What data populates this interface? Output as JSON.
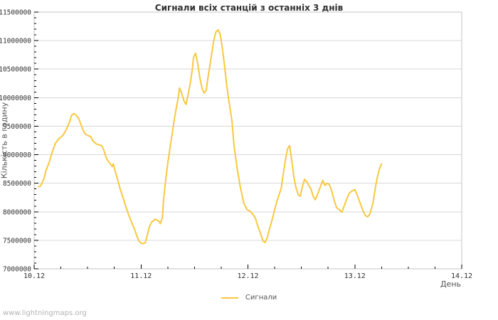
{
  "page": {
    "watermark": "www.lightningmaps.org"
  },
  "chart_data": {
    "type": "line",
    "title": "Сигнали всіх станцій з останніх 3 днів",
    "xlabel": "День",
    "ylabel": "Кількість в годину",
    "legend": {
      "position": "bottom-center",
      "entries": [
        {
          "label": "Сигнали",
          "color": "#f8c840"
        }
      ]
    },
    "grid": "horizontal-only",
    "xlim": [
      0,
      4
    ],
    "ylim": [
      7000000,
      11500000
    ],
    "y_major_step": 500000,
    "y_minor_step": 100000,
    "x_minor_step": 0.25,
    "x_ticks": [
      {
        "t": 0,
        "label": "10.12"
      },
      {
        "t": 1,
        "label": "11.12"
      },
      {
        "t": 2,
        "label": "12.12"
      },
      {
        "t": 3,
        "label": "13.12"
      },
      {
        "t": 4,
        "label": "14.12"
      }
    ],
    "y_tick_labels": [
      "7000000",
      "7500000",
      "8000000",
      "8500000",
      "9000000",
      "9500000",
      "10000000",
      "10500000",
      "11000000",
      "11500000"
    ],
    "colors": {
      "line": "#f8c840",
      "grid": "#d8d8d8",
      "border": "#c6c6c6",
      "tick": "#000000",
      "tick_text": "#303030",
      "axis_text": "#555555",
      "watermark": "#b3b3b3",
      "background": "#ffffff"
    },
    "series": [
      {
        "name": "Сигнали",
        "color": "#f8c840",
        "points": [
          [
            0.04,
            8440000
          ],
          [
            0.06,
            8450000
          ],
          [
            0.09,
            8570000
          ],
          [
            0.11,
            8720000
          ],
          [
            0.14,
            8860000
          ],
          [
            0.17,
            9050000
          ],
          [
            0.2,
            9200000
          ],
          [
            0.23,
            9280000
          ],
          [
            0.27,
            9340000
          ],
          [
            0.3,
            9440000
          ],
          [
            0.33,
            9570000
          ],
          [
            0.35,
            9690000
          ],
          [
            0.37,
            9720000
          ],
          [
            0.39,
            9700000
          ],
          [
            0.42,
            9620000
          ],
          [
            0.44,
            9520000
          ],
          [
            0.46,
            9420000
          ],
          [
            0.48,
            9360000
          ],
          [
            0.51,
            9330000
          ],
          [
            0.53,
            9320000
          ],
          [
            0.55,
            9240000
          ],
          [
            0.58,
            9190000
          ],
          [
            0.61,
            9170000
          ],
          [
            0.63,
            9160000
          ],
          [
            0.65,
            9090000
          ],
          [
            0.67,
            8970000
          ],
          [
            0.69,
            8890000
          ],
          [
            0.71,
            8850000
          ],
          [
            0.73,
            8790000
          ],
          [
            0.74,
            8840000
          ],
          [
            0.76,
            8700000
          ],
          [
            0.78,
            8570000
          ],
          [
            0.8,
            8430000
          ],
          [
            0.82,
            8310000
          ],
          [
            0.84,
            8200000
          ],
          [
            0.86,
            8080000
          ],
          [
            0.88,
            7970000
          ],
          [
            0.9,
            7870000
          ],
          [
            0.92,
            7780000
          ],
          [
            0.94,
            7690000
          ],
          [
            0.96,
            7580000
          ],
          [
            0.98,
            7490000
          ],
          [
            1.0,
            7450000
          ],
          [
            1.02,
            7440000
          ],
          [
            1.04,
            7460000
          ],
          [
            1.06,
            7600000
          ],
          [
            1.08,
            7750000
          ],
          [
            1.1,
            7820000
          ],
          [
            1.12,
            7850000
          ],
          [
            1.13,
            7870000
          ],
          [
            1.15,
            7850000
          ],
          [
            1.17,
            7830000
          ],
          [
            1.18,
            7790000
          ],
          [
            1.2,
            7900000
          ],
          [
            1.21,
            8200000
          ],
          [
            1.23,
            8550000
          ],
          [
            1.25,
            8850000
          ],
          [
            1.27,
            9100000
          ],
          [
            1.29,
            9350000
          ],
          [
            1.31,
            9600000
          ],
          [
            1.33,
            9820000
          ],
          [
            1.35,
            10020000
          ],
          [
            1.36,
            10170000
          ],
          [
            1.38,
            10080000
          ],
          [
            1.4,
            9950000
          ],
          [
            1.42,
            9880000
          ],
          [
            1.44,
            10050000
          ],
          [
            1.46,
            10250000
          ],
          [
            1.48,
            10500000
          ],
          [
            1.49,
            10700000
          ],
          [
            1.51,
            10780000
          ],
          [
            1.53,
            10600000
          ],
          [
            1.55,
            10350000
          ],
          [
            1.57,
            10170000
          ],
          [
            1.59,
            10080000
          ],
          [
            1.61,
            10130000
          ],
          [
            1.63,
            10400000
          ],
          [
            1.66,
            10750000
          ],
          [
            1.68,
            11000000
          ],
          [
            1.7,
            11150000
          ],
          [
            1.72,
            11190000
          ],
          [
            1.74,
            11120000
          ],
          [
            1.76,
            10880000
          ],
          [
            1.78,
            10580000
          ],
          [
            1.8,
            10250000
          ],
          [
            1.82,
            9960000
          ],
          [
            1.85,
            9600000
          ],
          [
            1.87,
            9150000
          ],
          [
            1.9,
            8750000
          ],
          [
            1.93,
            8420000
          ],
          [
            1.96,
            8160000
          ],
          [
            1.99,
            8040000
          ],
          [
            2.02,
            8010000
          ],
          [
            2.04,
            7970000
          ],
          [
            2.07,
            7890000
          ],
          [
            2.09,
            7760000
          ],
          [
            2.12,
            7610000
          ],
          [
            2.14,
            7490000
          ],
          [
            2.16,
            7460000
          ],
          [
            2.18,
            7540000
          ],
          [
            2.2,
            7690000
          ],
          [
            2.22,
            7820000
          ],
          [
            2.24,
            7960000
          ],
          [
            2.26,
            8110000
          ],
          [
            2.28,
            8240000
          ],
          [
            2.31,
            8400000
          ],
          [
            2.33,
            8650000
          ],
          [
            2.35,
            8900000
          ],
          [
            2.37,
            9100000
          ],
          [
            2.39,
            9160000
          ],
          [
            2.41,
            8900000
          ],
          [
            2.43,
            8610000
          ],
          [
            2.45,
            8420000
          ],
          [
            2.47,
            8300000
          ],
          [
            2.49,
            8270000
          ],
          [
            2.51,
            8440000
          ],
          [
            2.53,
            8570000
          ],
          [
            2.55,
            8530000
          ],
          [
            2.57,
            8460000
          ],
          [
            2.59,
            8400000
          ],
          [
            2.61,
            8270000
          ],
          [
            2.63,
            8210000
          ],
          [
            2.65,
            8300000
          ],
          [
            2.67,
            8400000
          ],
          [
            2.7,
            8550000
          ],
          [
            2.72,
            8460000
          ],
          [
            2.74,
            8500000
          ],
          [
            2.76,
            8480000
          ],
          [
            2.78,
            8390000
          ],
          [
            2.81,
            8180000
          ],
          [
            2.83,
            8070000
          ],
          [
            2.86,
            8030000
          ],
          [
            2.88,
            7990000
          ],
          [
            2.9,
            8100000
          ],
          [
            2.93,
            8250000
          ],
          [
            2.95,
            8330000
          ],
          [
            2.98,
            8370000
          ],
          [
            3.0,
            8390000
          ],
          [
            3.02,
            8300000
          ],
          [
            3.05,
            8150000
          ],
          [
            3.08,
            8000000
          ],
          [
            3.1,
            7930000
          ],
          [
            3.12,
            7910000
          ],
          [
            3.14,
            7960000
          ],
          [
            3.17,
            8150000
          ],
          [
            3.19,
            8400000
          ],
          [
            3.21,
            8600000
          ],
          [
            3.23,
            8750000
          ],
          [
            3.25,
            8840000
          ]
        ]
      }
    ]
  }
}
